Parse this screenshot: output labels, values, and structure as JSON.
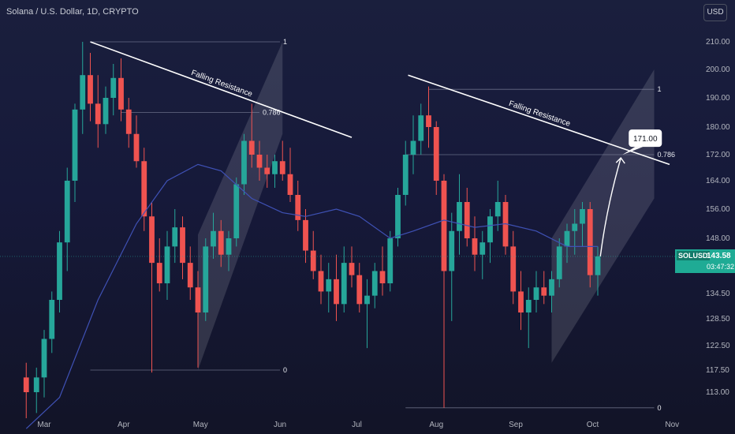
{
  "header": {
    "title": "Solana / U.S. Dollar, 1D, CRYPTO"
  },
  "currency_button": {
    "label": "USD"
  },
  "price_tag": {
    "symbol": "SOLUSD",
    "price": "143.58",
    "countdown": "03:47:32"
  },
  "target_label": "171.00",
  "colors": {
    "up": "#26a69a",
    "down": "#ef5350",
    "ma": "#3f51b5",
    "trend": "#ffffff",
    "fib": "#8a8fa6"
  },
  "chart_data": {
    "type": "candlestick",
    "yticks": [
      210.0,
      200.0,
      190.0,
      180.0,
      172.0,
      164.0,
      156.0,
      148.0,
      134.5,
      128.5,
      122.5,
      117.5,
      113.0
    ],
    "xticks": [
      "Mar",
      "Apr",
      "May",
      "Jun",
      "Jul",
      "Aug",
      "Sep",
      "Oct",
      "Nov"
    ],
    "ylim": [
      108,
      214
    ],
    "current_price": 143.58,
    "grid": false,
    "candles": [
      {
        "t": "02-22",
        "o": 116,
        "h": 119,
        "l": 108,
        "c": 113
      },
      {
        "t": "02-26",
        "o": 113,
        "h": 118,
        "l": 109,
        "c": 116
      },
      {
        "t": "03-01",
        "o": 116,
        "h": 126,
        "l": 112,
        "c": 124
      },
      {
        "t": "03-04",
        "o": 124,
        "h": 135,
        "l": 121,
        "c": 133
      },
      {
        "t": "03-07",
        "o": 133,
        "h": 150,
        "l": 130,
        "c": 147
      },
      {
        "t": "03-10",
        "o": 147,
        "h": 168,
        "l": 140,
        "c": 164
      },
      {
        "t": "03-13",
        "o": 164,
        "h": 188,
        "l": 158,
        "c": 186
      },
      {
        "t": "03-16",
        "o": 186,
        "h": 210,
        "l": 178,
        "c": 198
      },
      {
        "t": "03-19",
        "o": 198,
        "h": 206,
        "l": 182,
        "c": 188
      },
      {
        "t": "03-22",
        "o": 188,
        "h": 198,
        "l": 174,
        "c": 181
      },
      {
        "t": "03-25",
        "o": 181,
        "h": 194,
        "l": 178,
        "c": 190
      },
      {
        "t": "03-28",
        "o": 190,
        "h": 202,
        "l": 184,
        "c": 197
      },
      {
        "t": "03-31",
        "o": 197,
        "h": 204,
        "l": 182,
        "c": 186
      },
      {
        "t": "04-03",
        "o": 186,
        "h": 190,
        "l": 174,
        "c": 178
      },
      {
        "t": "04-06",
        "o": 178,
        "h": 184,
        "l": 168,
        "c": 170
      },
      {
        "t": "04-09",
        "o": 170,
        "h": 174,
        "l": 150,
        "c": 154
      },
      {
        "t": "04-12",
        "o": 154,
        "h": 158,
        "l": 117,
        "c": 142
      },
      {
        "t": "04-15",
        "o": 142,
        "h": 148,
        "l": 135,
        "c": 137
      },
      {
        "t": "04-18",
        "o": 137,
        "h": 150,
        "l": 133,
        "c": 146
      },
      {
        "t": "04-21",
        "o": 146,
        "h": 156,
        "l": 142,
        "c": 151
      },
      {
        "t": "04-24",
        "o": 151,
        "h": 154,
        "l": 138,
        "c": 142
      },
      {
        "t": "04-27",
        "o": 142,
        "h": 146,
        "l": 133,
        "c": 136
      },
      {
        "t": "04-30",
        "o": 136,
        "h": 140,
        "l": 118,
        "c": 130
      },
      {
        "t": "05-03",
        "o": 130,
        "h": 148,
        "l": 128,
        "c": 146
      },
      {
        "t": "05-06",
        "o": 146,
        "h": 155,
        "l": 143,
        "c": 150
      },
      {
        "t": "05-09",
        "o": 150,
        "h": 153,
        "l": 141,
        "c": 144
      },
      {
        "t": "05-12",
        "o": 144,
        "h": 150,
        "l": 140,
        "c": 148
      },
      {
        "t": "05-15",
        "o": 148,
        "h": 165,
        "l": 146,
        "c": 163
      },
      {
        "t": "05-18",
        "o": 163,
        "h": 178,
        "l": 160,
        "c": 176
      },
      {
        "t": "05-21",
        "o": 176,
        "h": 188,
        "l": 168,
        "c": 172
      },
      {
        "t": "05-24",
        "o": 172,
        "h": 176,
        "l": 164,
        "c": 168
      },
      {
        "t": "05-27",
        "o": 168,
        "h": 172,
        "l": 162,
        "c": 166
      },
      {
        "t": "05-30",
        "o": 166,
        "h": 172,
        "l": 162,
        "c": 170
      },
      {
        "t": "06-02",
        "o": 170,
        "h": 176,
        "l": 164,
        "c": 166
      },
      {
        "t": "06-05",
        "o": 166,
        "h": 174,
        "l": 158,
        "c": 160
      },
      {
        "t": "06-08",
        "o": 160,
        "h": 164,
        "l": 150,
        "c": 153
      },
      {
        "t": "06-11",
        "o": 153,
        "h": 156,
        "l": 142,
        "c": 145
      },
      {
        "t": "06-14",
        "o": 145,
        "h": 150,
        "l": 138,
        "c": 140
      },
      {
        "t": "06-17",
        "o": 140,
        "h": 144,
        "l": 132,
        "c": 135
      },
      {
        "t": "06-20",
        "o": 135,
        "h": 142,
        "l": 130,
        "c": 138
      },
      {
        "t": "06-23",
        "o": 138,
        "h": 144,
        "l": 128,
        "c": 132
      },
      {
        "t": "06-26",
        "o": 132,
        "h": 146,
        "l": 130,
        "c": 142
      },
      {
        "t": "06-29",
        "o": 142,
        "h": 146,
        "l": 136,
        "c": 139
      },
      {
        "t": "07-02",
        "o": 139,
        "h": 142,
        "l": 130,
        "c": 132
      },
      {
        "t": "07-05",
        "o": 132,
        "h": 138,
        "l": 122,
        "c": 134
      },
      {
        "t": "07-08",
        "o": 134,
        "h": 142,
        "l": 131,
        "c": 140
      },
      {
        "t": "07-11",
        "o": 140,
        "h": 146,
        "l": 134,
        "c": 137
      },
      {
        "t": "07-14",
        "o": 137,
        "h": 150,
        "l": 135,
        "c": 148
      },
      {
        "t": "07-17",
        "o": 148,
        "h": 162,
        "l": 146,
        "c": 160
      },
      {
        "t": "07-20",
        "o": 160,
        "h": 176,
        "l": 157,
        "c": 172
      },
      {
        "t": "07-23",
        "o": 172,
        "h": 184,
        "l": 166,
        "c": 176
      },
      {
        "t": "07-26",
        "o": 176,
        "h": 188,
        "l": 172,
        "c": 184
      },
      {
        "t": "07-29",
        "o": 184,
        "h": 194,
        "l": 174,
        "c": 180
      },
      {
        "t": "08-01",
        "o": 180,
        "h": 182,
        "l": 160,
        "c": 164
      },
      {
        "t": "08-04",
        "o": 164,
        "h": 166,
        "l": 110,
        "c": 140
      },
      {
        "t": "08-07",
        "o": 140,
        "h": 155,
        "l": 128,
        "c": 150
      },
      {
        "t": "08-10",
        "o": 150,
        "h": 166,
        "l": 144,
        "c": 158
      },
      {
        "t": "08-13",
        "o": 158,
        "h": 162,
        "l": 146,
        "c": 148
      },
      {
        "t": "08-16",
        "o": 148,
        "h": 154,
        "l": 140,
        "c": 144
      },
      {
        "t": "08-19",
        "o": 144,
        "h": 150,
        "l": 138,
        "c": 147
      },
      {
        "t": "08-22",
        "o": 147,
        "h": 156,
        "l": 142,
        "c": 154
      },
      {
        "t": "08-25",
        "o": 154,
        "h": 164,
        "l": 150,
        "c": 158
      },
      {
        "t": "08-28",
        "o": 158,
        "h": 160,
        "l": 144,
        "c": 146
      },
      {
        "t": "08-31",
        "o": 146,
        "h": 150,
        "l": 132,
        "c": 135
      },
      {
        "t": "09-03",
        "o": 135,
        "h": 140,
        "l": 126,
        "c": 130
      },
      {
        "t": "09-06",
        "o": 130,
        "h": 136,
        "l": 122,
        "c": 133
      },
      {
        "t": "09-09",
        "o": 133,
        "h": 140,
        "l": 130,
        "c": 136
      },
      {
        "t": "09-12",
        "o": 136,
        "h": 140,
        "l": 132,
        "c": 134
      },
      {
        "t": "09-15",
        "o": 134,
        "h": 140,
        "l": 130,
        "c": 138
      },
      {
        "t": "09-18",
        "o": 138,
        "h": 148,
        "l": 136,
        "c": 146
      },
      {
        "t": "09-21",
        "o": 146,
        "h": 152,
        "l": 142,
        "c": 150
      },
      {
        "t": "09-24",
        "o": 150,
        "h": 156,
        "l": 144,
        "c": 152
      },
      {
        "t": "09-27",
        "o": 152,
        "h": 158,
        "l": 146,
        "c": 156
      },
      {
        "t": "09-30",
        "o": 156,
        "h": 158,
        "l": 136,
        "c": 139
      },
      {
        "t": "10-03",
        "o": 139,
        "h": 146,
        "l": 134,
        "c": 143.58
      }
    ],
    "moving_average": [
      {
        "t": "02-22",
        "v": 106
      },
      {
        "t": "03-07",
        "v": 112
      },
      {
        "t": "03-22",
        "v": 133
      },
      {
        "t": "04-06",
        "v": 152
      },
      {
        "t": "04-18",
        "v": 164
      },
      {
        "t": "04-30",
        "v": 169
      },
      {
        "t": "05-09",
        "v": 167
      },
      {
        "t": "05-21",
        "v": 159
      },
      {
        "t": "06-02",
        "v": 155
      },
      {
        "t": "06-11",
        "v": 154
      },
      {
        "t": "06-23",
        "v": 156
      },
      {
        "t": "07-02",
        "v": 154
      },
      {
        "t": "07-14",
        "v": 148
      },
      {
        "t": "07-23",
        "v": 150
      },
      {
        "t": "08-04",
        "v": 153
      },
      {
        "t": "08-16",
        "v": 151
      },
      {
        "t": "08-28",
        "v": 152
      },
      {
        "t": "09-09",
        "v": 150
      },
      {
        "t": "09-21",
        "v": 146
      },
      {
        "t": "10-03",
        "v": 146
      }
    ],
    "trendlines": [
      {
        "label": "Falling Resistance",
        "from": {
          "t": "03-19",
          "v": 210
        },
        "to": {
          "t": "06-29",
          "v": 177
        }
      },
      {
        "label": "Falling Resistance",
        "from": {
          "t": "07-21",
          "v": 198
        },
        "to": {
          "t": "10-31",
          "v": 169
        }
      }
    ],
    "fib_levels": [
      {
        "label": "1",
        "v": 210,
        "from": "03-19",
        "to": "06-01"
      },
      {
        "label": "0.786",
        "v": 185,
        "from": "03-31",
        "to": "05-24"
      },
      {
        "label": "0",
        "v": 117.5,
        "from": "03-19",
        "to": "06-01"
      },
      {
        "label": "1",
        "v": 193,
        "from": "07-29",
        "to": "10-25"
      },
      {
        "label": "0.786",
        "v": 172,
        "from": "07-20",
        "to": "10-25"
      },
      {
        "label": "0",
        "v": 110,
        "from": "07-20",
        "to": "10-25"
      }
    ],
    "channels": [
      {
        "from": {
          "t": "04-30",
          "v": 117.5,
          "v2": 149
        },
        "to": {
          "t": "06-02",
          "v": 178,
          "v2": 210
        }
      },
      {
        "from": {
          "t": "09-15",
          "v": 119,
          "v2": 148
        },
        "to": {
          "t": "10-25",
          "v": 159,
          "v2": 200
        }
      }
    ],
    "projection": {
      "from": {
        "t": "10-04",
        "v": 143.58
      },
      "to": {
        "t": "10-12",
        "v": 171
      }
    }
  }
}
